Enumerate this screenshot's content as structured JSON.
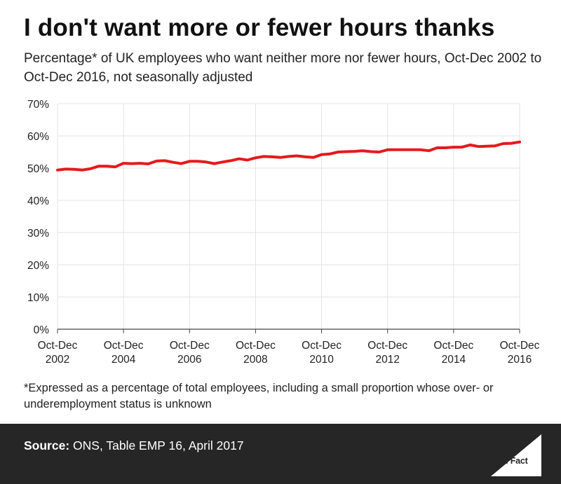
{
  "chart_data": {
    "type": "line",
    "title": "I don't want more or fewer hours thanks",
    "subtitle": "Percentage* of UK employees who want neither more nor fewer hours, Oct-Dec 2002 to Oct-Dec 2016, not seasonally adjusted",
    "xlabel": "",
    "ylabel": "",
    "ylim": [
      0,
      70
    ],
    "yticks": [
      0,
      10,
      20,
      30,
      40,
      50,
      60,
      70
    ],
    "ytick_labels": [
      "0%",
      "10%",
      "20%",
      "30%",
      "40%",
      "50%",
      "60%",
      "70%"
    ],
    "xtick_labels": [
      {
        "line1": "Oct-Dec",
        "line2": "2002"
      },
      {
        "line1": "Oct-Dec",
        "line2": "2004"
      },
      {
        "line1": "Oct-Dec",
        "line2": "2006"
      },
      {
        "line1": "Oct-Dec",
        "line2": "2008"
      },
      {
        "line1": "Oct-Dec",
        "line2": "2010"
      },
      {
        "line1": "Oct-Dec",
        "line2": "2012"
      },
      {
        "line1": "Oct-Dec",
        "line2": "2014"
      },
      {
        "line1": "Oct-Dec",
        "line2": "2016"
      }
    ],
    "x": [
      "Oct-Dec 2002",
      "Jan-Mar 2003",
      "Apr-Jun 2003",
      "Jul-Sep 2003",
      "Oct-Dec 2003",
      "Jan-Mar 2004",
      "Apr-Jun 2004",
      "Jul-Sep 2004",
      "Oct-Dec 2004",
      "Jan-Mar 2005",
      "Apr-Jun 2005",
      "Jul-Sep 2005",
      "Oct-Dec 2005",
      "Jan-Mar 2006",
      "Apr-Jun 2006",
      "Jul-Sep 2006",
      "Oct-Dec 2006",
      "Jan-Mar 2007",
      "Apr-Jun 2007",
      "Jul-Sep 2007",
      "Oct-Dec 2007",
      "Jan-Mar 2008",
      "Apr-Jun 2008",
      "Jul-Sep 2008",
      "Oct-Dec 2008",
      "Jan-Mar 2009",
      "Apr-Jun 2009",
      "Jul-Sep 2009",
      "Oct-Dec 2009",
      "Jan-Mar 2010",
      "Apr-Jun 2010",
      "Jul-Sep 2010",
      "Oct-Dec 2010",
      "Jan-Mar 2011",
      "Apr-Jun 2011",
      "Jul-Sep 2011",
      "Oct-Dec 2011",
      "Jan-Mar 2012",
      "Apr-Jun 2012",
      "Jul-Sep 2012",
      "Oct-Dec 2012",
      "Jan-Mar 2013",
      "Apr-Jun 2013",
      "Jul-Sep 2013",
      "Oct-Dec 2013",
      "Jan-Mar 2014",
      "Apr-Jun 2014",
      "Jul-Sep 2014",
      "Oct-Dec 2014",
      "Jan-Mar 2015",
      "Apr-Jun 2015",
      "Jul-Sep 2015",
      "Oct-Dec 2015",
      "Jan-Mar 2016",
      "Apr-Jun 2016",
      "Jul-Sep 2016",
      "Oct-Dec 2016"
    ],
    "series": [
      {
        "color": "#e41a1c",
        "values": [
          49.4,
          49.7,
          49.6,
          49.4,
          49.8,
          50.6,
          50.6,
          50.4,
          51.5,
          51.4,
          51.5,
          51.3,
          52.2,
          52.3,
          51.8,
          51.4,
          52.1,
          52.1,
          51.9,
          51.4,
          51.9,
          52.3,
          52.9,
          52.5,
          53.2,
          53.6,
          53.5,
          53.3,
          53.6,
          53.8,
          53.5,
          53.3,
          54.2,
          54.4,
          55.0,
          55.1,
          55.2,
          55.4,
          55.1,
          55.0,
          55.7,
          55.7,
          55.7,
          55.7,
          55.7,
          55.4,
          56.3,
          56.3,
          56.5,
          56.5,
          57.2,
          56.7,
          56.8,
          56.9,
          57.6,
          57.7,
          58.1
        ]
      }
    ],
    "grid": true,
    "legend": "none"
  },
  "footnote": "*Expressed as a percentage of total employees, including a small proportion whose over- or underemployment status is unknown",
  "source": {
    "label": "Source:",
    "text": "ONS, Table EMP 16, April 2017"
  },
  "logo_text": "Full Fact",
  "colors": {
    "line": "#e41a1c",
    "footer_bg": "#262626",
    "grid": "#e3e3e3",
    "axis": "#444444"
  }
}
